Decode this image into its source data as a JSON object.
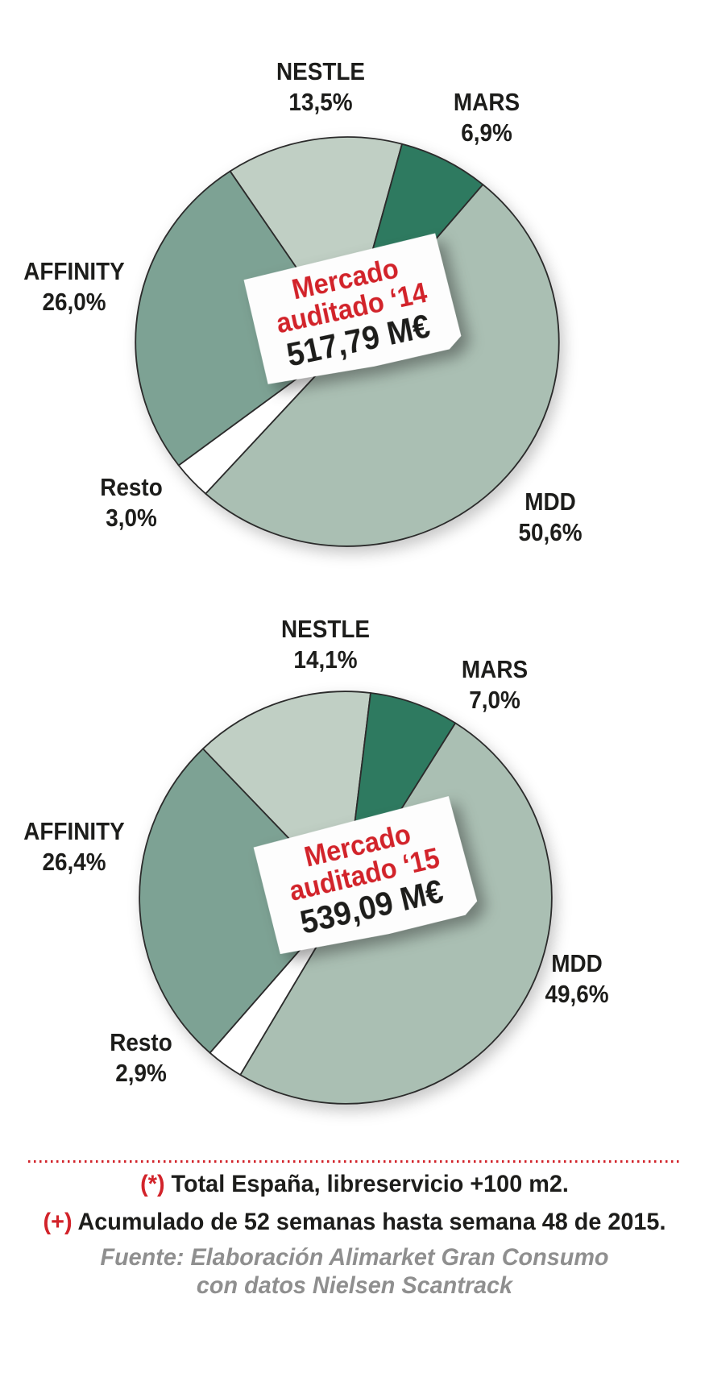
{
  "chart_data": [
    {
      "type": "pie",
      "title": "Mercado auditado ‘14",
      "total": "517,79 M€",
      "center_label": {
        "line1": "Mercado",
        "line2": "auditado ‘14",
        "value": "517,79 M€"
      },
      "start_angle_deg": -33.6,
      "slices": [
        {
          "label": "NESTLE",
          "value_text": "13,5%",
          "pct": 13.5,
          "color": "#c0cfc4"
        },
        {
          "label": "MARS",
          "value_text": "6,9%",
          "pct": 6.9,
          "color": "#2e7a60"
        },
        {
          "label": "MDD",
          "value_text": "50,6%",
          "pct": 50.6,
          "color": "#aabfb3"
        },
        {
          "label": "Resto",
          "value_text": "3,0%",
          "pct": 3.0,
          "color": "#ffffff"
        },
        {
          "label": "AFFINITY",
          "value_text": "26,0%",
          "pct": 26.0,
          "color": "#7da294"
        }
      ],
      "legend": "none",
      "grid": "off"
    },
    {
      "type": "pie",
      "title": "Mercado auditado ‘15",
      "total": "539,09 M€",
      "center_label": {
        "line1": "Mercado",
        "line2": "auditado ‘15",
        "value": "539,09 M€"
      },
      "start_angle_deg": -43.8,
      "slices": [
        {
          "label": "NESTLE",
          "value_text": "14,1%",
          "pct": 14.1,
          "color": "#c0cfc4"
        },
        {
          "label": "MARS",
          "value_text": "7,0%",
          "pct": 7.0,
          "color": "#2e7a60"
        },
        {
          "label": "MDD",
          "value_text": "49,6%",
          "pct": 49.6,
          "color": "#aabfb3"
        },
        {
          "label": "Resto",
          "value_text": "2,9%",
          "pct": 2.9,
          "color": "#ffffff"
        },
        {
          "label": "AFFINITY",
          "value_text": "26,4%",
          "pct": 26.4,
          "color": "#7da294"
        }
      ],
      "legend": "none",
      "grid": "off"
    }
  ],
  "footer": {
    "note1_prefix": "(*)",
    "note1_text": " Total España, libreservicio +100 m2.",
    "note2_prefix": "(+)",
    "note2_text": " Acumulado de 52 semanas hasta semana 48 de 2015.",
    "source_line1": "Fuente: Elaboración Alimarket Gran Consumo",
    "source_line2": "con datos Nielsen Scantrack"
  },
  "colors": {
    "accent_red": "#d2232a",
    "text_black": "#1d1d1b",
    "source_gray": "#8f8f8f",
    "slice_outline": "#2b2b2b"
  }
}
